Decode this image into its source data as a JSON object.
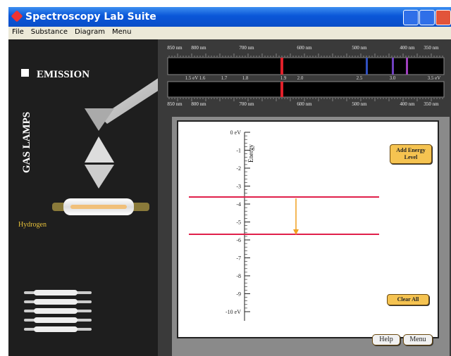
{
  "window": {
    "title": "Spectroscopy Lab Suite"
  },
  "menu": [
    "File",
    "Substance",
    "Diagram",
    "Menu"
  ],
  "left_panel": {
    "mode": "EMISSION",
    "section": "GAS LAMPS",
    "lamp": "Hydrogen"
  },
  "spectrum": {
    "wavelength_labels": [
      "850 nm",
      "800 nm",
      "700 nm",
      "600 nm",
      "500 nm",
      "400 nm",
      "350 nm"
    ],
    "energy_labels": [
      "1.5 eV",
      "1.6",
      "1.7",
      "1.8",
      "1.9",
      "2.0",
      "2.5",
      "3.0",
      "3.5 eV"
    ]
  },
  "energy_diagram": {
    "axis_label": "Energy",
    "tick_labels": [
      "0 eV",
      "-1",
      "-2",
      "-3",
      "-4",
      "-5",
      "-6",
      "-7",
      "-8",
      "-9",
      "-10 eV"
    ]
  },
  "buttons": {
    "add_level": "Add Energy Level",
    "clear": "Clear All",
    "help": "Help",
    "menu": "Menu"
  }
}
